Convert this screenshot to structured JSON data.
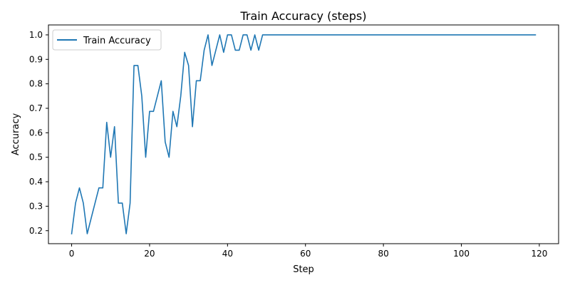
{
  "chart_data": {
    "type": "line",
    "title": "Train Accuracy (steps)",
    "xlabel": "Step",
    "ylabel": "Accuracy",
    "xlim": [
      -5.95,
      124.95
    ],
    "ylim": [
      0.1469,
      1.0406
    ],
    "xticks": [
      0,
      20,
      40,
      60,
      80,
      100,
      120
    ],
    "xtick_labels": [
      "0",
      "20",
      "40",
      "60",
      "80",
      "100",
      "120"
    ],
    "yticks": [
      0.2,
      0.3,
      0.4,
      0.5,
      0.6,
      0.7,
      0.8,
      0.9,
      1.0
    ],
    "ytick_labels": [
      "0.2",
      "0.3",
      "0.4",
      "0.5",
      "0.6",
      "0.7",
      "0.8",
      "0.9",
      "1.0"
    ],
    "grid": false,
    "legend": {
      "position": "top-left",
      "entries": [
        "Train Accuracy"
      ]
    },
    "series": [
      {
        "name": "Train Accuracy",
        "color": "#1f77b4",
        "x": [
          0,
          1,
          2,
          3,
          4,
          5,
          6,
          7,
          8,
          9,
          10,
          11,
          12,
          13,
          14,
          15,
          16,
          17,
          18,
          19,
          20,
          21,
          22,
          23,
          24,
          25,
          26,
          27,
          28,
          29,
          30,
          31,
          32,
          33,
          34,
          35,
          36,
          37,
          38,
          39,
          40,
          41,
          42,
          43,
          44,
          45,
          46,
          47,
          48,
          49,
          50,
          51,
          52,
          53,
          54,
          55,
          56,
          57,
          58,
          59,
          60,
          61,
          62,
          63,
          64,
          65,
          66,
          67,
          68,
          69,
          70,
          71,
          72,
          73,
          74,
          75,
          76,
          77,
          78,
          79,
          80,
          81,
          82,
          83,
          84,
          85,
          86,
          87,
          88,
          89,
          90,
          91,
          92,
          93,
          94,
          95,
          96,
          97,
          98,
          99,
          100,
          101,
          102,
          103,
          104,
          105,
          106,
          107,
          108,
          109,
          110,
          111,
          112,
          113,
          114,
          115,
          116,
          117,
          118,
          119
        ],
        "y": [
          0.1875,
          0.3125,
          0.375,
          0.3125,
          0.1875,
          0.25,
          0.3125,
          0.375,
          0.375,
          0.6429,
          0.5,
          0.625,
          0.3125,
          0.3125,
          0.1875,
          0.3125,
          0.875,
          0.875,
          0.75,
          0.5,
          0.6875,
          0.6875,
          0.75,
          0.8125,
          0.5625,
          0.5,
          0.6875,
          0.625,
          0.75,
          0.9286,
          0.875,
          0.625,
          0.8125,
          0.8125,
          0.9375,
          1.0,
          0.875,
          0.9375,
          1.0,
          0.9286,
          1.0,
          1.0,
          0.9375,
          0.9375,
          1.0,
          1.0,
          0.9375,
          1.0,
          0.9375,
          1.0,
          1.0,
          1.0,
          1.0,
          1.0,
          1.0,
          1.0,
          1.0,
          1.0,
          1.0,
          1.0,
          1.0,
          1.0,
          1.0,
          1.0,
          1.0,
          1.0,
          1.0,
          1.0,
          1.0,
          1.0,
          1.0,
          1.0,
          1.0,
          1.0,
          1.0,
          1.0,
          1.0,
          1.0,
          1.0,
          1.0,
          1.0,
          1.0,
          1.0,
          1.0,
          1.0,
          1.0,
          1.0,
          1.0,
          1.0,
          1.0,
          1.0,
          1.0,
          1.0,
          1.0,
          1.0,
          1.0,
          1.0,
          1.0,
          1.0,
          1.0,
          1.0,
          1.0,
          1.0,
          1.0,
          1.0,
          1.0,
          1.0,
          1.0,
          1.0,
          1.0,
          1.0,
          1.0,
          1.0,
          1.0,
          1.0,
          1.0,
          1.0,
          1.0,
          1.0,
          1.0
        ]
      }
    ]
  }
}
